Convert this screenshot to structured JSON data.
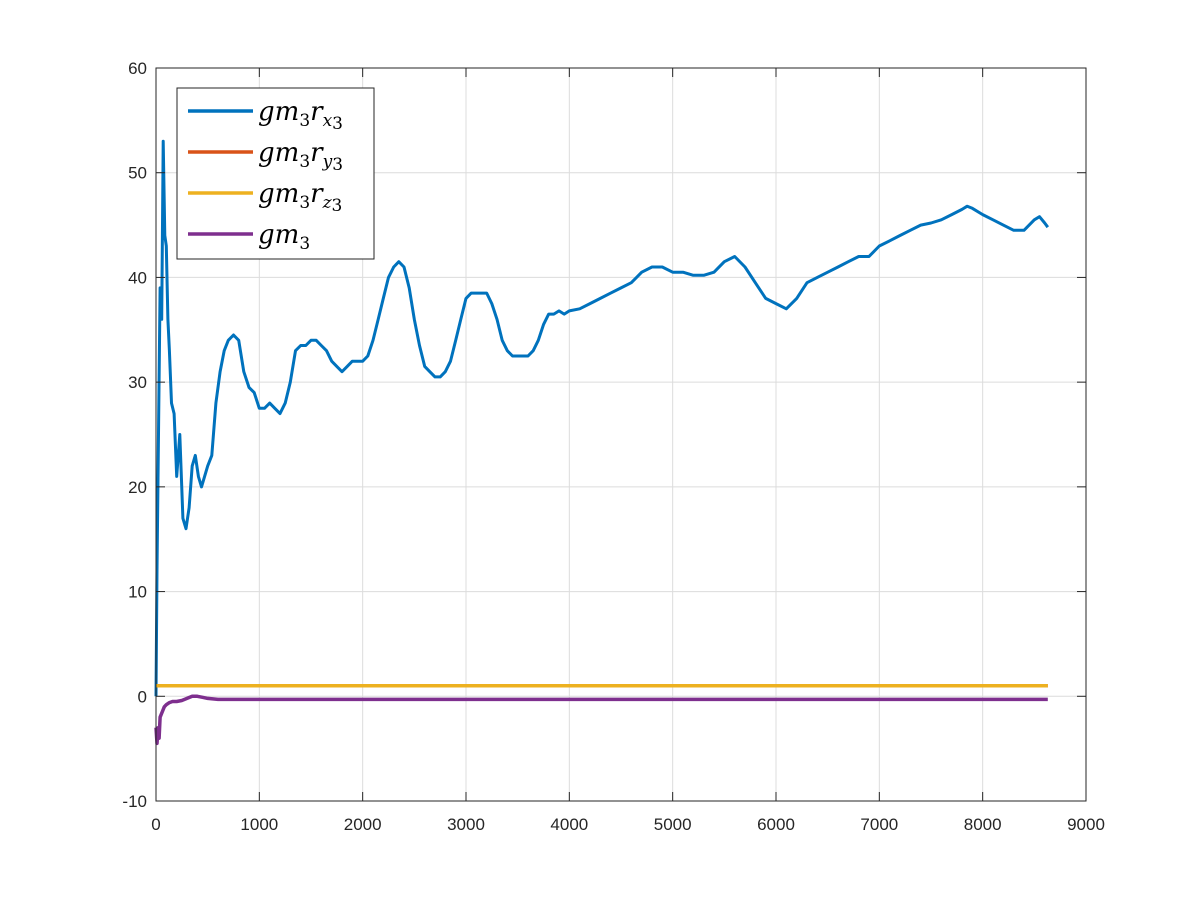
{
  "chart_data": {
    "type": "line",
    "title": "",
    "xlabel": "",
    "ylabel": "",
    "xlim": [
      0,
      9000
    ],
    "ylim": [
      -10,
      60
    ],
    "xticks": [
      0,
      1000,
      2000,
      3000,
      4000,
      5000,
      6000,
      7000,
      8000,
      9000
    ],
    "yticks": [
      -10,
      0,
      10,
      20,
      30,
      40,
      50,
      60
    ],
    "grid": true,
    "legend_position": "top-left",
    "series": [
      {
        "name": "gm3rx3",
        "legend": {
          "base": "gm",
          "mid": "3",
          "main": "r",
          "sub": "x",
          "subsub": "3"
        },
        "color": "#0072BD",
        "x": [
          0,
          10,
          25,
          40,
          55,
          70,
          85,
          100,
          115,
          130,
          150,
          175,
          200,
          230,
          260,
          290,
          320,
          350,
          380,
          410,
          440,
          470,
          500,
          540,
          580,
          620,
          660,
          700,
          750,
          800,
          850,
          900,
          950,
          1000,
          1050,
          1100,
          1150,
          1200,
          1250,
          1300,
          1350,
          1400,
          1450,
          1500,
          1550,
          1600,
          1650,
          1700,
          1750,
          1800,
          1850,
          1900,
          1950,
          2000,
          2050,
          2100,
          2150,
          2200,
          2250,
          2300,
          2350,
          2400,
          2450,
          2500,
          2550,
          2600,
          2650,
          2700,
          2750,
          2800,
          2850,
          2900,
          2950,
          3000,
          3050,
          3100,
          3150,
          3200,
          3250,
          3300,
          3350,
          3400,
          3450,
          3500,
          3550,
          3600,
          3650,
          3700,
          3750,
          3800,
          3850,
          3900,
          3950,
          4000,
          4100,
          4200,
          4300,
          4400,
          4500,
          4600,
          4700,
          4800,
          4900,
          5000,
          5100,
          5200,
          5300,
          5400,
          5500,
          5600,
          5700,
          5800,
          5900,
          6000,
          6100,
          6200,
          6300,
          6400,
          6500,
          6600,
          6700,
          6800,
          6900,
          7000,
          7100,
          7200,
          7300,
          7400,
          7500,
          7600,
          7700,
          7800,
          7850,
          7900,
          8000,
          8100,
          8200,
          8300,
          8400,
          8500,
          8550,
          8600,
          8630
        ],
        "y": [
          0,
          12,
          26,
          39,
          36,
          53,
          44,
          43,
          36,
          33,
          28,
          27,
          21,
          25,
          17,
          16,
          18,
          22,
          23,
          21,
          20,
          21,
          22,
          23,
          28,
          31,
          33,
          34,
          34.5,
          34,
          31,
          29.5,
          29,
          27.5,
          27.5,
          28,
          27.5,
          27,
          28,
          30,
          33,
          33.5,
          33.5,
          34,
          34,
          33.5,
          33,
          32,
          31.5,
          31,
          31.5,
          32,
          32,
          32,
          32.5,
          34,
          36,
          38,
          40,
          41,
          41.5,
          41,
          39,
          36,
          33.5,
          31.5,
          31,
          30.5,
          30.5,
          31,
          32,
          34,
          36,
          38,
          38.5,
          38.5,
          38.5,
          38.5,
          37.5,
          36,
          34,
          33,
          32.5,
          32.5,
          32.5,
          32.5,
          33,
          34,
          35.5,
          36.5,
          36.5,
          36.8,
          36.5,
          36.8,
          37,
          37.5,
          38,
          38.5,
          39,
          39.5,
          40.5,
          41,
          41,
          40.5,
          40.5,
          40.2,
          40.2,
          40.5,
          41.5,
          42,
          41,
          39.5,
          38,
          37.5,
          37,
          38,
          39.5,
          40,
          40.5,
          41,
          41.5,
          42,
          42,
          43,
          43.5,
          44,
          44.5,
          45,
          45.2,
          45.5,
          46,
          46.5,
          46.8,
          46.6,
          46,
          45.5,
          45,
          44.5,
          44.5,
          45.5,
          45.8,
          45.2,
          44.8
        ]
      },
      {
        "name": "gm3ry3",
        "legend": {
          "base": "gm",
          "mid": "3",
          "main": "r",
          "sub": "y",
          "subsub": "3"
        },
        "color": "#D95319",
        "x": [
          0,
          8630
        ],
        "y": [
          1,
          1
        ]
      },
      {
        "name": "gm3rz3",
        "legend": {
          "base": "gm",
          "mid": "3",
          "main": "r",
          "sub": "z",
          "subsub": "3"
        },
        "color": "#EDB120",
        "x": [
          0,
          8630
        ],
        "y": [
          1,
          1
        ]
      },
      {
        "name": "gm3",
        "legend": {
          "base": "gm",
          "mid": "3",
          "main": "",
          "sub": "",
          "subsub": ""
        },
        "color": "#7E2F8E",
        "x": [
          0,
          10,
          20,
          30,
          40,
          60,
          80,
          100,
          130,
          160,
          200,
          250,
          300,
          350,
          400,
          450,
          500,
          600,
          700,
          800,
          1000,
          1500,
          2000,
          2500,
          3000,
          4000,
          5000,
          6000,
          7000,
          8000,
          8630
        ],
        "y": [
          -3,
          -4.5,
          -3,
          -4,
          -2,
          -1.5,
          -1,
          -0.8,
          -0.6,
          -0.5,
          -0.5,
          -0.4,
          -0.2,
          0,
          0,
          -0.1,
          -0.2,
          -0.3,
          -0.3,
          -0.3,
          -0.3,
          -0.3,
          -0.3,
          -0.3,
          -0.3,
          -0.3,
          -0.3,
          -0.3,
          -0.3,
          -0.3,
          -0.3
        ]
      }
    ]
  }
}
